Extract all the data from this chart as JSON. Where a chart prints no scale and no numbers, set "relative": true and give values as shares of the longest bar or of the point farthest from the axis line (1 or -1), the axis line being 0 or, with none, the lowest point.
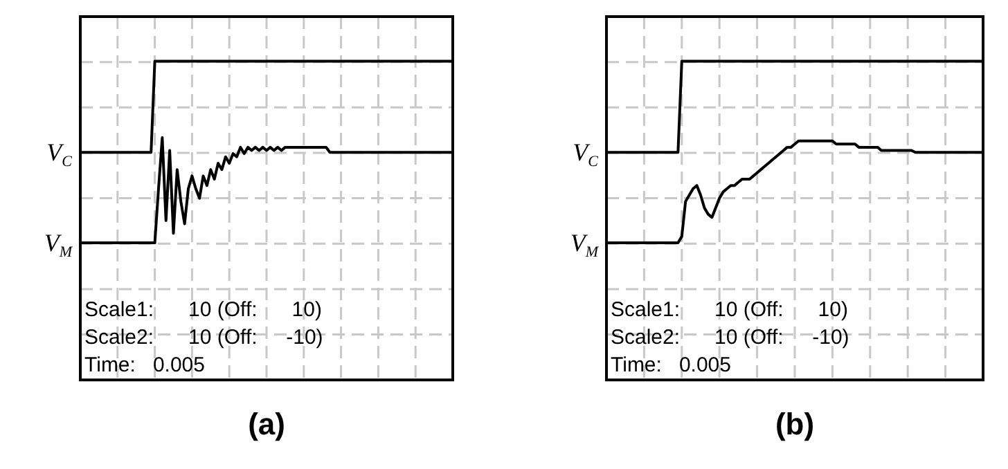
{
  "chart_data": [
    {
      "type": "line",
      "title": "(a)",
      "relative": true,
      "grid": true,
      "legend": false,
      "marker": "none",
      "line_style": "solid",
      "categories": [
        null,
        null,
        null,
        null,
        null,
        null,
        null,
        null,
        null,
        null,
        null,
        null,
        null,
        null,
        null,
        null,
        null,
        null,
        null,
        null,
        null,
        null,
        null,
        null,
        null,
        null,
        null,
        null,
        null,
        null,
        null,
        null,
        null,
        null,
        null,
        null,
        null,
        null,
        null,
        null,
        null,
        null,
        null,
        null,
        null,
        null,
        null,
        null,
        null,
        null,
        null,
        null,
        null,
        null,
        null,
        null,
        null,
        null,
        null,
        null,
        null,
        null,
        null,
        null,
        null,
        null,
        null,
        null,
        null,
        null,
        null,
        null,
        null,
        null,
        null,
        null,
        null,
        null,
        null,
        null,
        null,
        null,
        null,
        null,
        null,
        null,
        null,
        null,
        null,
        null,
        null,
        null,
        null,
        null,
        null,
        null,
        null,
        null,
        null,
        null,
        null
      ],
      "annotations": [
        "Scale1:      10 (Off:      10)",
        "Scale2:      10 (Off:     -10)",
        "Time:   0.005"
      ],
      "series": [
        {
          "name": "V$_{C}$",
          "color": "#000000",
          "values": [
            0.714,
            0.714,
            0.714,
            0.714,
            0.714,
            0.714,
            0.714,
            0.714,
            0.714,
            0.714,
            0.714,
            0.714,
            0.714,
            0.714,
            0.714,
            0.714,
            0.714,
            0.714,
            0.714,
            0.714,
            1,
            1,
            1,
            1,
            1,
            1,
            1,
            1,
            1,
            1,
            1,
            1,
            1,
            1,
            1,
            1,
            1,
            1,
            1,
            1,
            1,
            1,
            1,
            1,
            1,
            1,
            1,
            1,
            1,
            1,
            1,
            1,
            1,
            1,
            1,
            1,
            1,
            1,
            1,
            1,
            1,
            1,
            1,
            1,
            1,
            1,
            1,
            1,
            1,
            1,
            1,
            1,
            1,
            1,
            1,
            1,
            1,
            1,
            1,
            1,
            1,
            1,
            1,
            1,
            1,
            1,
            1,
            1,
            1,
            1,
            1,
            1,
            1,
            1,
            1,
            1,
            1,
            1,
            1,
            1,
            1
          ]
        },
        {
          "name": "V$_{M}$",
          "color": "#000000",
          "values": [
            0.43,
            0.43,
            0.43,
            0.43,
            0.43,
            0.43,
            0.43,
            0.43,
            0.43,
            0.43,
            0.43,
            0.43,
            0.43,
            0.43,
            0.43,
            0.43,
            0.43,
            0.43,
            0.43,
            0.43,
            0.43,
            0.6,
            0.76,
            0.5,
            0.72,
            0.46,
            0.66,
            0.56,
            0.49,
            0.6,
            0.64,
            0.6,
            0.57,
            0.64,
            0.61,
            0.66,
            0.63,
            0.68,
            0.66,
            0.7,
            0.68,
            0.71,
            0.7,
            0.73,
            0.71,
            0.73,
            0.72,
            0.73,
            0.72,
            0.73,
            0.72,
            0.73,
            0.72,
            0.73,
            0.72,
            0.73,
            0.73,
            0.73,
            0.73,
            0.73,
            0.73,
            0.73,
            0.73,
            0.73,
            0.73,
            0.73,
            0.73,
            0.714,
            0.714,
            0.714,
            0.714,
            0.714,
            0.714,
            0.714,
            0.714,
            0.714,
            0.714,
            0.714,
            0.714,
            0.714,
            0.714,
            0.714,
            0.714,
            0.714,
            0.714,
            0.714,
            0.714,
            0.714,
            0.714,
            0.714,
            0.714,
            0.714,
            0.714,
            0.714,
            0.714,
            0.714,
            0.714,
            0.714,
            0.714,
            0.714,
            0.714
          ]
        }
      ]
    },
    {
      "type": "line",
      "title": "(b)",
      "relative": true,
      "grid": true,
      "legend": false,
      "marker": "none",
      "line_style": "solid",
      "categories": [
        null,
        null,
        null,
        null,
        null,
        null,
        null,
        null,
        null,
        null,
        null,
        null,
        null,
        null,
        null,
        null,
        null,
        null,
        null,
        null,
        null,
        null,
        null,
        null,
        null,
        null,
        null,
        null,
        null,
        null,
        null,
        null,
        null,
        null,
        null,
        null,
        null,
        null,
        null,
        null,
        null,
        null,
        null,
        null,
        null,
        null,
        null,
        null,
        null,
        null,
        null,
        null,
        null,
        null,
        null,
        null,
        null,
        null,
        null,
        null,
        null,
        null,
        null,
        null,
        null,
        null,
        null,
        null,
        null,
        null,
        null,
        null,
        null,
        null,
        null,
        null,
        null,
        null,
        null,
        null,
        null,
        null,
        null,
        null,
        null,
        null,
        null,
        null,
        null,
        null,
        null,
        null,
        null,
        null,
        null,
        null,
        null,
        null,
        null,
        null,
        null
      ],
      "annotations": [
        "Scale1:      10 (Off:      10)",
        "Scale2:      10 (Off:     -10)",
        "Time:   0.005"
      ],
      "series": [
        {
          "name": "V$_{C}$",
          "color": "#000000",
          "values": [
            0.714,
            0.714,
            0.714,
            0.714,
            0.714,
            0.714,
            0.714,
            0.714,
            0.714,
            0.714,
            0.714,
            0.714,
            0.714,
            0.714,
            0.714,
            0.714,
            0.714,
            0.714,
            0.714,
            0.714,
            1,
            1,
            1,
            1,
            1,
            1,
            1,
            1,
            1,
            1,
            1,
            1,
            1,
            1,
            1,
            1,
            1,
            1,
            1,
            1,
            1,
            1,
            1,
            1,
            1,
            1,
            1,
            1,
            1,
            1,
            1,
            1,
            1,
            1,
            1,
            1,
            1,
            1,
            1,
            1,
            1,
            1,
            1,
            1,
            1,
            1,
            1,
            1,
            1,
            1,
            1,
            1,
            1,
            1,
            1,
            1,
            1,
            1,
            1,
            1,
            1,
            1,
            1,
            1,
            1,
            1,
            1,
            1,
            1,
            1,
            1,
            1,
            1,
            1,
            1,
            1,
            1,
            1,
            1,
            1,
            1
          ]
        },
        {
          "name": "V$_{M}$",
          "color": "#000000",
          "values": [
            0.43,
            0.43,
            0.43,
            0.43,
            0.43,
            0.43,
            0.43,
            0.43,
            0.43,
            0.43,
            0.43,
            0.43,
            0.43,
            0.43,
            0.43,
            0.43,
            0.43,
            0.43,
            0.43,
            0.43,
            0.45,
            0.56,
            0.58,
            0.6,
            0.61,
            0.58,
            0.54,
            0.52,
            0.51,
            0.54,
            0.57,
            0.59,
            0.6,
            0.61,
            0.61,
            0.62,
            0.63,
            0.63,
            0.63,
            0.64,
            0.65,
            0.66,
            0.67,
            0.68,
            0.69,
            0.7,
            0.71,
            0.72,
            0.73,
            0.73,
            0.74,
            0.75,
            0.75,
            0.75,
            0.75,
            0.75,
            0.75,
            0.75,
            0.75,
            0.75,
            0.75,
            0.74,
            0.74,
            0.74,
            0.74,
            0.74,
            0.74,
            0.73,
            0.73,
            0.73,
            0.73,
            0.73,
            0.73,
            0.72,
            0.72,
            0.72,
            0.72,
            0.72,
            0.72,
            0.72,
            0.72,
            0.72,
            0.714,
            0.714,
            0.714,
            0.714,
            0.714,
            0.714,
            0.714,
            0.714,
            0.714,
            0.714,
            0.714,
            0.714,
            0.714,
            0.714,
            0.714,
            0.714,
            0.714,
            0.714,
            0.714
          ]
        }
      ]
    }
  ]
}
